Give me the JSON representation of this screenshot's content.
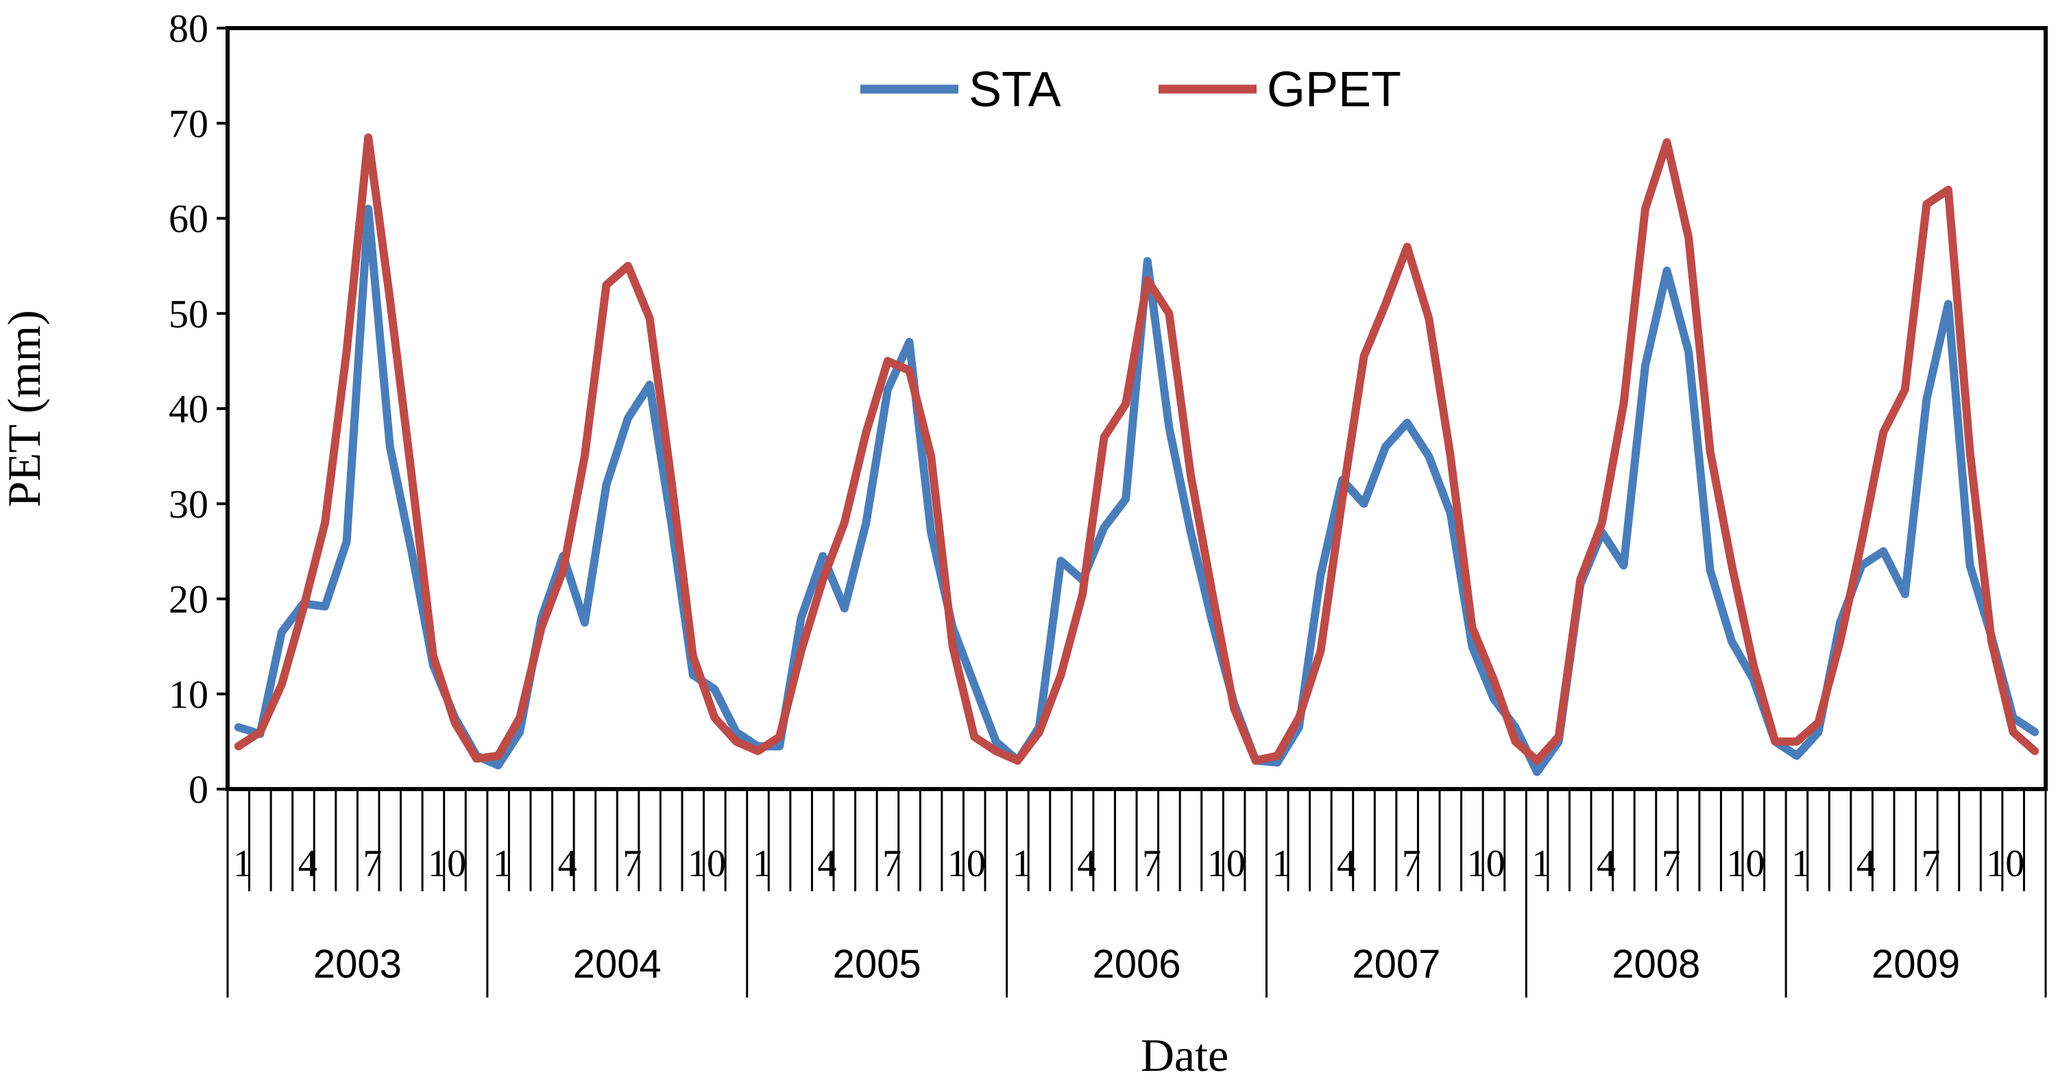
{
  "chart_data": {
    "type": "line",
    "title": "",
    "xlabel": "Date",
    "ylabel": "PET (mm)",
    "ylim": [
      0,
      80
    ],
    "yticks": [
      0,
      10,
      20,
      30,
      40,
      50,
      60,
      70,
      80
    ],
    "grid": false,
    "legend": "top-center",
    "month_tick_labels": [
      "1",
      "4",
      "7",
      "10"
    ],
    "month_tick_positions": [
      1,
      4,
      7,
      10
    ],
    "years": [
      "2003",
      "2004",
      "2005",
      "2006",
      "2007",
      "2008",
      "2009"
    ],
    "months_per_year": 12,
    "series": [
      {
        "name": "STA",
        "color": "#4a7ebb",
        "values": [
          6.5,
          5.8,
          16.5,
          19.5,
          19.2,
          26,
          61,
          36,
          25,
          13,
          7.5,
          3.5,
          2.5,
          6,
          18,
          24.5,
          17.5,
          32,
          39,
          42.5,
          28,
          12,
          10.5,
          6,
          4.5,
          4.5,
          18,
          24.5,
          19,
          28,
          42,
          47,
          27,
          17,
          11,
          5,
          3,
          6.5,
          24,
          22,
          27.5,
          30.5,
          55.5,
          38,
          27,
          17.5,
          9,
          3,
          2.8,
          6.5,
          22.5,
          32.5,
          30,
          36,
          38.5,
          35,
          29,
          15,
          9.5,
          6.5,
          1.8,
          5,
          21.5,
          27,
          23.5,
          44.5,
          54.5,
          46,
          23,
          15.5,
          11.5,
          5,
          3.5,
          6,
          17.5,
          23.5,
          25,
          20.5,
          41,
          51,
          23.5,
          16,
          7.5,
          6
        ]
      },
      {
        "name": "GPET",
        "color": "#be4b48",
        "values": [
          4.5,
          6,
          11,
          19,
          28,
          46,
          68.5,
          51.5,
          33,
          14,
          7,
          3.2,
          3.5,
          7.5,
          17,
          23,
          35,
          53,
          55,
          49.5,
          32.5,
          14,
          7.5,
          5,
          4,
          5.5,
          14.5,
          22,
          28,
          37.5,
          45,
          44,
          35,
          15,
          5.5,
          4,
          3,
          6,
          12,
          20.5,
          37,
          40.5,
          53.5,
          50,
          33,
          20.5,
          8.5,
          3,
          3.5,
          7.5,
          14.5,
          30.5,
          45.5,
          51,
          57,
          49.5,
          35,
          17,
          11.5,
          5,
          3,
          5.5,
          22,
          28,
          40.5,
          61,
          68,
          58,
          35.5,
          23.5,
          13,
          5,
          5,
          7,
          15.5,
          26,
          37.5,
          42,
          61.5,
          63,
          35.5,
          15.5,
          6,
          4
        ]
      }
    ]
  }
}
